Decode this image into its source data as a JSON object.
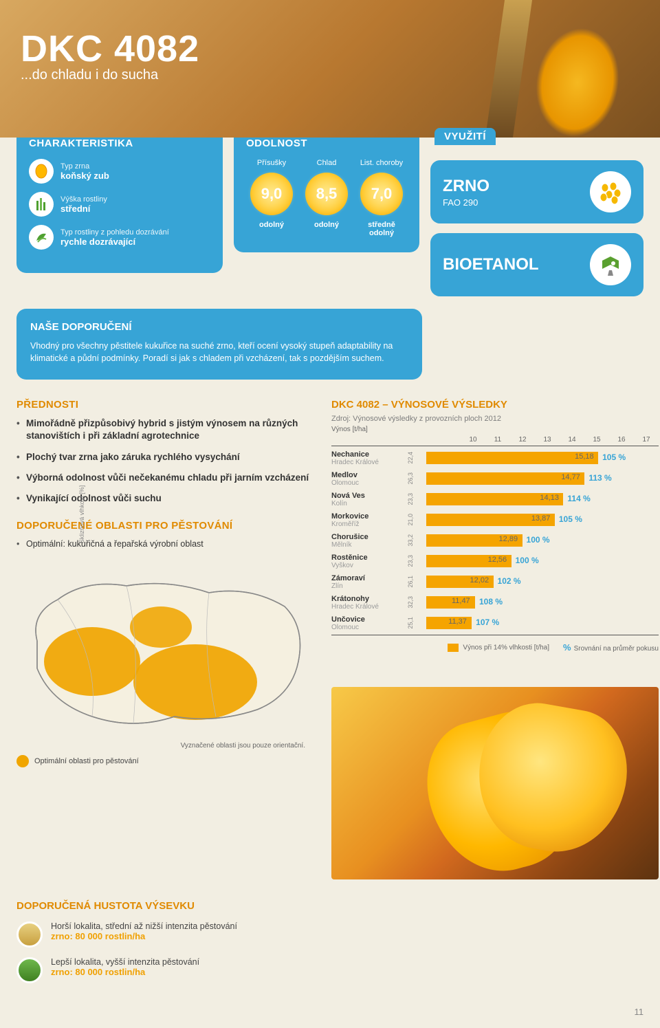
{
  "hero": {
    "title": "DKC 4082",
    "subtitle": "...do chladu i do sucha"
  },
  "characteristics": {
    "heading": "CHARAKTERISTIKA",
    "rows": {
      "r1": {
        "label": "Typ zrna",
        "value": "koňský zub"
      },
      "r2": {
        "label": "Výška rostliny",
        "value": "střední"
      },
      "r3": {
        "label": "Typ rostliny z pohledu dozrávání",
        "value": "rychle dozrávající"
      }
    }
  },
  "resistance": {
    "heading": "ODOLNOST",
    "cols": {
      "c1": {
        "label": "Přísušky",
        "value": "9,0",
        "desc": "odolný"
      },
      "c2": {
        "label": "Chlad",
        "value": "8,5",
        "desc": "odolný"
      },
      "c3": {
        "label": "List. choroby",
        "value": "7,0",
        "desc": "středně odolný"
      }
    }
  },
  "usage": {
    "heading": "VYUŽITÍ",
    "box1": {
      "big": "ZRNO",
      "small": "FAO 290"
    },
    "box2": {
      "big": "BIOETANOL"
    }
  },
  "recommendation": {
    "heading": "NAŠE DOPORUČENÍ",
    "text": "Vhodný pro všechny pěstitele kukuřice na suché zrno, kteří ocení vysoký stupeň adaptability na klimatické a půdní podmínky. Poradí si jak s chladem při vzcházení, tak s pozdějším suchem."
  },
  "advantages": {
    "heading": "PŘEDNOSTI",
    "items": {
      "i1": "Mimořádně přizpůsobivý hybrid s jistým výnosem na různých stanovištích i při základní agrotechnice",
      "i2": "Plochý tvar zrna jako záruka rychlého vysychání",
      "i3": "Výborná odolnost vůči nečekanému chladu při jarním vzcházení",
      "i4": "Vynikající odolnost vůči suchu"
    }
  },
  "areas": {
    "heading": "DOPORUČENÉ OBLASTI PRO PĚSTOVÁNÍ",
    "item": "Optimální: kukuřičná a řepařská výrobní oblast",
    "note": "Vyznačené oblasti jsou pouze orientační.",
    "legend": "Optimální oblasti pro pěstování"
  },
  "results": {
    "heading": "DKC 4082 – VÝNOSOVÉ VÝSLEDKY",
    "source": "Zdroj: Výnosové výsledky z provozních ploch 2012",
    "xlabel": "Výnos [t/ha]",
    "ylabel": "Sklizňová vlhkost [%]",
    "xmin": 10,
    "xmax": 17,
    "xtick_step": 1,
    "bar_color": "#f5a400",
    "pct_color": "#37a4d6",
    "ticks": {
      "t0": "10",
      "t1": "11",
      "t2": "12",
      "t3": "13",
      "t4": "14",
      "t5": "15",
      "t6": "16",
      "t7": "17"
    },
    "rows": {
      "r0": {
        "name": "Nechanice",
        "sub": "Hradec Králové",
        "humid": "22,4",
        "value": 15.18,
        "val_s": "15,18",
        "pct": "105 %"
      },
      "r1": {
        "name": "Medlov",
        "sub": "Olomouc",
        "humid": "26,3",
        "value": 14.77,
        "val_s": "14,77",
        "pct": "113 %"
      },
      "r2": {
        "name": "Nová Ves",
        "sub": "Kolín",
        "humid": "23,3",
        "value": 14.13,
        "val_s": "14,13",
        "pct": "114 %"
      },
      "r3": {
        "name": "Morkovice",
        "sub": "Kroměříž",
        "humid": "21,0",
        "value": 13.87,
        "val_s": "13,87",
        "pct": "105 %"
      },
      "r4": {
        "name": "Chorušice",
        "sub": "Mělník",
        "humid": "33,2",
        "value": 12.89,
        "val_s": "12,89",
        "pct": "100 %"
      },
      "r5": {
        "name": "Rostěnice",
        "sub": "Vyškov",
        "humid": "23,3",
        "value": 12.56,
        "val_s": "12,56",
        "pct": "100 %"
      },
      "r6": {
        "name": "Zámoraví",
        "sub": "Zlín",
        "humid": "26,1",
        "value": 12.02,
        "val_s": "12,02",
        "pct": "102 %"
      },
      "r7": {
        "name": "Krátonohy",
        "sub": "Hradec Králové",
        "humid": "32,3",
        "value": 11.47,
        "val_s": "11,47",
        "pct": "108 %"
      },
      "r8": {
        "name": "Unčovice",
        "sub": "Olomouc",
        "humid": "25,1",
        "value": 11.37,
        "val_s": "11,37",
        "pct": "107 %"
      }
    },
    "legend1": "Výnos při 14% vlhkosti [t/ha]",
    "legend2": "Srovnání na průměr pokusu",
    "legend2_sym": "%"
  },
  "density": {
    "heading": "DOPORUČENÁ HUSTOTA VÝSEVKU",
    "r1": {
      "l1": "Horší lokalita, střední až nižší intenzita pěstování",
      "l2": "zrno: 80 000 rostlin/ha"
    },
    "r2": {
      "l1": "Lepší lokalita, vyšší intenzita pěstování",
      "l2": "zrno: 80 000 rostlin/ha"
    }
  },
  "pagenum": "11",
  "colors": {
    "blue": "#37a4d6",
    "orange": "#f5a400",
    "orange_text": "#e08a00",
    "bg": "#f2eee2"
  }
}
